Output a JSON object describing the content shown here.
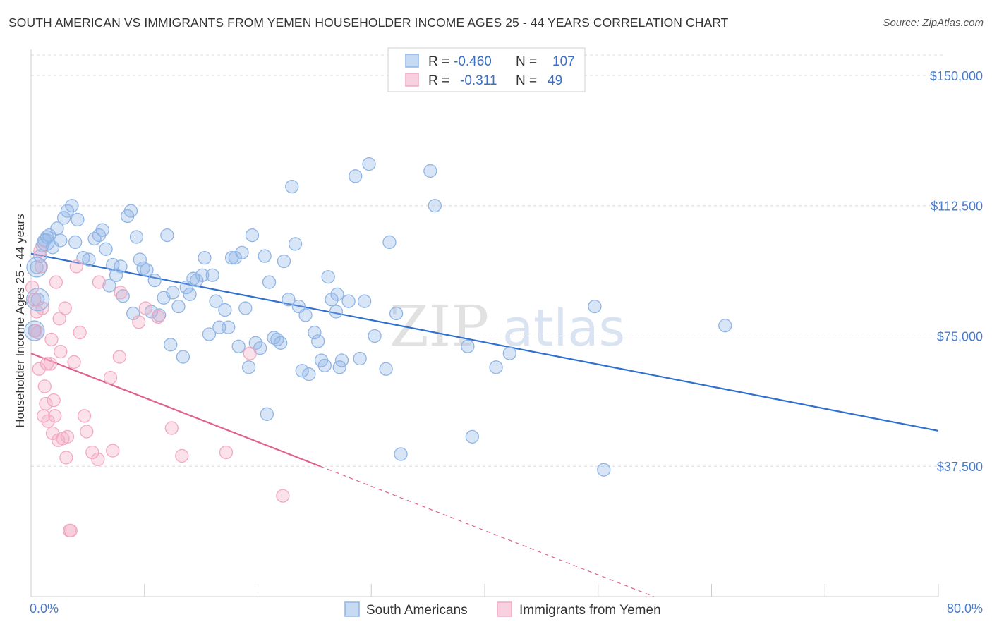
{
  "header": {
    "title": "SOUTH AMERICAN VS IMMIGRANTS FROM YEMEN HOUSEHOLDER INCOME AGES 25 - 44 YEARS CORRELATION CHART",
    "source": "Source: ZipAtlas.com"
  },
  "watermark": {
    "zip": "ZIP",
    "atlas": "atlas"
  },
  "legend": {
    "rows": [
      {
        "r_label": "R =",
        "r_value": "-0.460",
        "n_label": "N =",
        "n_value": "107"
      },
      {
        "r_label": "R =",
        "r_value": "-0.311",
        "n_label": "N =",
        "n_value": "49"
      }
    ]
  },
  "chart_data": {
    "type": "scatter",
    "title": "SOUTH AMERICAN VS IMMIGRANTS FROM YEMEN HOUSEHOLDER INCOME AGES 25 - 44 YEARS CORRELATION CHART",
    "xlabel": "",
    "ylabel": "Householder Income Ages 25 - 44 years",
    "xlim": [
      0,
      80
    ],
    "ylim": [
      0,
      157500
    ],
    "x_tick_labels": [
      "0.0%",
      "80.0%"
    ],
    "y_ticks": [
      37500,
      75000,
      112500,
      150000
    ],
    "y_tick_labels": [
      "$37,500",
      "$75,000",
      "$112,500",
      "$150,000"
    ],
    "grid": true,
    "legend_position": "top-center",
    "series": [
      {
        "name": "South Americans",
        "color": "#8fb5e6",
        "line_color": "#2f6fcf",
        "r": -0.46,
        "n": 107,
        "trend": {
          "x0": 0,
          "y0": 98700,
          "x1": 80,
          "y1": 47700
        },
        "points": [
          [
            0.5,
            94800
          ],
          [
            0.6,
            85500
          ],
          [
            0.3,
            76500
          ],
          [
            1.0,
            101000
          ],
          [
            1.2,
            102500
          ],
          [
            1.4,
            103500
          ],
          [
            1.6,
            104000
          ],
          [
            2.3,
            106000
          ],
          [
            2.6,
            102500
          ],
          [
            2.9,
            109000
          ],
          [
            3.2,
            111000
          ],
          [
            3.6,
            112500
          ],
          [
            3.9,
            102000
          ],
          [
            4.1,
            108500
          ],
          [
            4.6,
            97500
          ],
          [
            5.1,
            97000
          ],
          [
            5.6,
            103000
          ],
          [
            6.0,
            104000
          ],
          [
            6.3,
            105500
          ],
          [
            6.6,
            100000
          ],
          [
            6.9,
            89500
          ],
          [
            7.2,
            95500
          ],
          [
            7.5,
            92500
          ],
          [
            8.1,
            86500
          ],
          [
            8.5,
            109500
          ],
          [
            8.8,
            111000
          ],
          [
            9.0,
            81500
          ],
          [
            9.3,
            103500
          ],
          [
            9.6,
            97000
          ],
          [
            9.9,
            94500
          ],
          [
            10.2,
            94000
          ],
          [
            10.6,
            82000
          ],
          [
            10.9,
            91000
          ],
          [
            11.3,
            81000
          ],
          [
            11.7,
            86000
          ],
          [
            12.0,
            104000
          ],
          [
            12.3,
            72500
          ],
          [
            12.5,
            87500
          ],
          [
            13.0,
            83500
          ],
          [
            13.4,
            69000
          ],
          [
            13.7,
            89000
          ],
          [
            14.0,
            87000
          ],
          [
            14.3,
            91500
          ],
          [
            14.6,
            91000
          ],
          [
            15.1,
            92500
          ],
          [
            15.3,
            97500
          ],
          [
            15.7,
            75500
          ],
          [
            16.0,
            92500
          ],
          [
            16.3,
            85000
          ],
          [
            16.6,
            77500
          ],
          [
            17.1,
            82500
          ],
          [
            17.4,
            77500
          ],
          [
            17.7,
            97500
          ],
          [
            18.0,
            97500
          ],
          [
            18.3,
            72000
          ],
          [
            18.6,
            99000
          ],
          [
            18.9,
            83000
          ],
          [
            19.2,
            66000
          ],
          [
            19.5,
            104000
          ],
          [
            19.8,
            73000
          ],
          [
            20.2,
            71500
          ],
          [
            20.6,
            98000
          ],
          [
            20.8,
            52500
          ],
          [
            21.0,
            90500
          ],
          [
            21.4,
            74500
          ],
          [
            21.7,
            74000
          ],
          [
            22.0,
            73000
          ],
          [
            22.3,
            96500
          ],
          [
            22.7,
            85500
          ],
          [
            23.0,
            118000
          ],
          [
            23.3,
            101500
          ],
          [
            23.6,
            83500
          ],
          [
            23.9,
            65000
          ],
          [
            24.2,
            81000
          ],
          [
            24.5,
            64000
          ],
          [
            25.0,
            76000
          ],
          [
            25.3,
            73500
          ],
          [
            25.6,
            68000
          ],
          [
            25.9,
            66500
          ],
          [
            26.2,
            92000
          ],
          [
            26.5,
            85500
          ],
          [
            26.9,
            82000
          ],
          [
            27.0,
            87000
          ],
          [
            27.2,
            66000
          ],
          [
            27.4,
            68000
          ],
          [
            28.0,
            85000
          ],
          [
            28.6,
            121000
          ],
          [
            29.0,
            68500
          ],
          [
            29.4,
            85000
          ],
          [
            29.8,
            124500
          ],
          [
            30.3,
            75000
          ],
          [
            31.3,
            65500
          ],
          [
            31.6,
            102000
          ],
          [
            32.2,
            81500
          ],
          [
            32.6,
            41000
          ],
          [
            35.2,
            122500
          ],
          [
            35.6,
            112500
          ],
          [
            38.5,
            72000
          ],
          [
            38.9,
            46000
          ],
          [
            41.0,
            66000
          ],
          [
            42.2,
            70000
          ],
          [
            49.7,
            83500
          ],
          [
            50.5,
            36500
          ],
          [
            61.2,
            78000
          ],
          [
            1.9,
            100500
          ],
          [
            0.8,
            98000
          ],
          [
            7.9,
            95000
          ]
        ]
      },
      {
        "name": "Immigrants from Yemen",
        "color": "#f3a9c2",
        "line_color": "#e0628b",
        "r": -0.311,
        "n": 49,
        "trend": {
          "x0": 0,
          "y0": 70000,
          "x1": 25.5,
          "y1": 37500
        },
        "trend_dashed": {
          "x0": 25.5,
          "y0": 37500,
          "x1": 80,
          "y1": -32000
        },
        "points": [
          [
            0.1,
            89000
          ],
          [
            0.3,
            85500
          ],
          [
            0.4,
            76500
          ],
          [
            0.5,
            82000
          ],
          [
            0.6,
            76000
          ],
          [
            0.7,
            65500
          ],
          [
            0.8,
            99500
          ],
          [
            0.9,
            95000
          ],
          [
            1.0,
            83000
          ],
          [
            1.1,
            52000
          ],
          [
            1.2,
            60500
          ],
          [
            1.3,
            55500
          ],
          [
            1.4,
            67000
          ],
          [
            1.5,
            50500
          ],
          [
            1.7,
            67000
          ],
          [
            1.8,
            74000
          ],
          [
            1.9,
            47000
          ],
          [
            2.0,
            56500
          ],
          [
            2.1,
            52000
          ],
          [
            2.2,
            90500
          ],
          [
            2.4,
            45000
          ],
          [
            2.5,
            80000
          ],
          [
            2.6,
            70500
          ],
          [
            2.8,
            45500
          ],
          [
            3.0,
            83000
          ],
          [
            3.1,
            40000
          ],
          [
            3.2,
            46000
          ],
          [
            3.4,
            19000
          ],
          [
            3.5,
            19000
          ],
          [
            3.8,
            67500
          ],
          [
            4.0,
            95000
          ],
          [
            4.3,
            76000
          ],
          [
            4.7,
            52000
          ],
          [
            4.9,
            47500
          ],
          [
            5.4,
            41500
          ],
          [
            5.9,
            39500
          ],
          [
            6.0,
            90500
          ],
          [
            7.0,
            63000
          ],
          [
            7.2,
            42000
          ],
          [
            7.8,
            69000
          ],
          [
            7.9,
            87500
          ],
          [
            9.5,
            79000
          ],
          [
            10.1,
            83000
          ],
          [
            11.2,
            80500
          ],
          [
            12.4,
            48500
          ],
          [
            13.3,
            40500
          ],
          [
            17.2,
            41500
          ],
          [
            19.3,
            70000
          ],
          [
            22.2,
            29000
          ]
        ]
      }
    ]
  },
  "bottom_legend": {
    "items": [
      {
        "label": "South Americans"
      },
      {
        "label": "Immigrants from Yemen"
      }
    ]
  }
}
